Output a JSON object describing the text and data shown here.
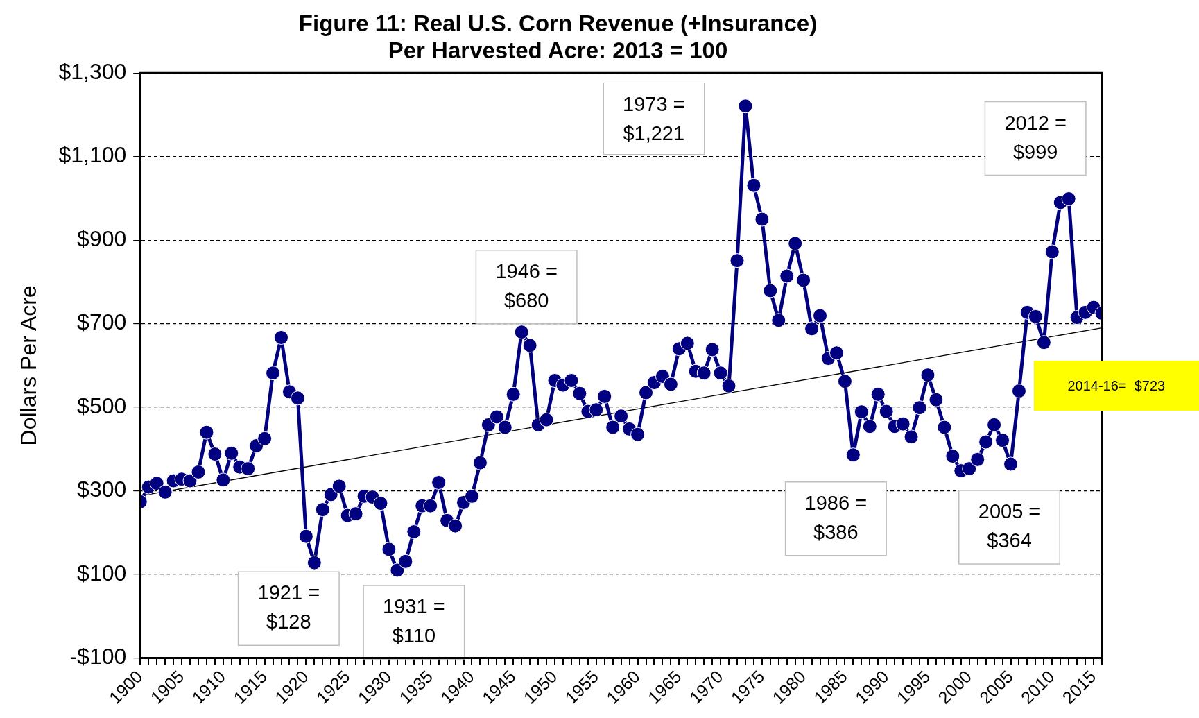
{
  "chart_data": {
    "type": "line",
    "title": "Figure 11: Real U.S. Corn Revenue (+Insurance)\nPer Harvested Acre: 2013 = 100",
    "ylabel": "Dollars Per Acre",
    "x": [
      1900,
      1901,
      1902,
      1903,
      1904,
      1905,
      1906,
      1907,
      1908,
      1909,
      1910,
      1911,
      1912,
      1913,
      1914,
      1915,
      1916,
      1917,
      1918,
      1919,
      1920,
      1921,
      1922,
      1923,
      1924,
      1925,
      1926,
      1927,
      1928,
      1929,
      1930,
      1931,
      1932,
      1933,
      1934,
      1935,
      1936,
      1937,
      1938,
      1939,
      1940,
      1941,
      1942,
      1943,
      1944,
      1945,
      1946,
      1947,
      1948,
      1949,
      1950,
      1951,
      1952,
      1953,
      1954,
      1955,
      1956,
      1957,
      1958,
      1959,
      1960,
      1961,
      1962,
      1963,
      1964,
      1965,
      1966,
      1967,
      1968,
      1969,
      1970,
      1971,
      1972,
      1973,
      1974,
      1975,
      1976,
      1977,
      1978,
      1979,
      1980,
      1981,
      1982,
      1983,
      1984,
      1985,
      1986,
      1987,
      1988,
      1989,
      1990,
      1991,
      1992,
      1993,
      1994,
      1995,
      1996,
      1997,
      1998,
      1999,
      2000,
      2001,
      2002,
      2003,
      2004,
      2005,
      2006,
      2007,
      2008,
      2009,
      2010,
      2011,
      2012,
      2013,
      2014,
      2015,
      2016
    ],
    "series": [
      {
        "color": "#000080",
        "marker": "circle",
        "values": [
          274,
          309,
          318,
          297,
          324,
          328,
          324,
          345,
          440,
          388,
          326,
          390,
          357,
          353,
          408,
          425,
          582,
          667,
          537,
          522,
          191,
          128,
          255,
          291,
          311,
          241,
          245,
          287,
          285,
          270,
          160,
          110,
          131,
          202,
          264,
          264,
          320,
          229,
          216,
          272,
          287,
          367,
          458,
          477,
          452,
          531,
          680,
          648,
          458,
          470,
          564,
          553,
          564,
          533,
          490,
          494,
          526,
          452,
          479,
          448,
          435,
          535,
          559,
          574,
          555,
          640,
          653,
          586,
          582,
          638,
          582,
          551,
          851,
          1221,
          1031,
          950,
          779,
          708,
          814,
          892,
          804,
          688,
          719,
          617,
          630,
          562,
          386,
          489,
          454,
          531,
          490,
          454,
          460,
          429,
          499,
          577,
          518,
          452,
          383,
          348,
          353,
          375,
          417,
          458,
          421,
          364,
          539,
          727,
          717,
          655,
          872,
          990,
          999,
          715,
          727,
          739,
          725
        ]
      },
      {
        "type": "line",
        "color": "#000000",
        "marker": "none",
        "x": [
          1900,
          2016
        ],
        "values": [
          288,
          690
        ]
      }
    ],
    "xlim": [
      1900,
      2016
    ],
    "xticks": [
      1900,
      {
        "value": 1901,
        "label": null
      },
      {
        "value": 1902,
        "label": null
      },
      {
        "value": 1903,
        "label": null
      },
      {
        "value": 1904,
        "label": null
      },
      1905,
      {
        "value": 1906,
        "label": null
      },
      {
        "value": 1907,
        "label": null
      },
      {
        "value": 1908,
        "label": null
      },
      {
        "value": 1909,
        "label": null
      },
      1910,
      {
        "value": 1911,
        "label": null
      },
      {
        "value": 1912,
        "label": null
      },
      {
        "value": 1913,
        "label": null
      },
      {
        "value": 1914,
        "label": null
      },
      1915,
      {
        "value": 1916,
        "label": null
      },
      {
        "value": 1917,
        "label": null
      },
      {
        "value": 1918,
        "label": null
      },
      {
        "value": 1919,
        "label": null
      },
      1920,
      {
        "value": 1921,
        "label": null
      },
      {
        "value": 1922,
        "label": null
      },
      {
        "value": 1923,
        "label": null
      },
      {
        "value": 1924,
        "label": null
      },
      1925,
      {
        "value": 1926,
        "label": null
      },
      {
        "value": 1927,
        "label": null
      },
      {
        "value": 1928,
        "label": null
      },
      {
        "value": 1929,
        "label": null
      },
      1930,
      {
        "value": 1931,
        "label": null
      },
      {
        "value": 1932,
        "label": null
      },
      {
        "value": 1933,
        "label": null
      },
      {
        "value": 1934,
        "label": null
      },
      1935,
      {
        "value": 1936,
        "label": null
      },
      {
        "value": 1937,
        "label": null
      },
      {
        "value": 1938,
        "label": null
      },
      {
        "value": 1939,
        "label": null
      },
      1940,
      {
        "value": 1941,
        "label": null
      },
      {
        "value": 1942,
        "label": null
      },
      {
        "value": 1943,
        "label": null
      },
      {
        "value": 1944,
        "label": null
      },
      1945,
      {
        "value": 1946,
        "label": null
      },
      {
        "value": 1947,
        "label": null
      },
      {
        "value": 1948,
        "label": null
      },
      {
        "value": 1949,
        "label": null
      },
      1950,
      {
        "value": 1951,
        "label": null
      },
      {
        "value": 1952,
        "label": null
      },
      {
        "value": 1953,
        "label": null
      },
      {
        "value": 1954,
        "label": null
      },
      1955,
      {
        "value": 1956,
        "label": null
      },
      {
        "value": 1957,
        "label": null
      },
      {
        "value": 1958,
        "label": null
      },
      {
        "value": 1959,
        "label": null
      },
      1960,
      {
        "value": 1961,
        "label": null
      },
      {
        "value": 1962,
        "label": null
      },
      {
        "value": 1963,
        "label": null
      },
      {
        "value": 1964,
        "label": null
      },
      1965,
      {
        "value": 1966,
        "label": null
      },
      {
        "value": 1967,
        "label": null
      },
      {
        "value": 1968,
        "label": null
      },
      {
        "value": 1969,
        "label": null
      },
      1970,
      {
        "value": 1971,
        "label": null
      },
      {
        "value": 1972,
        "label": null
      },
      {
        "value": 1973,
        "label": null
      },
      {
        "value": 1974,
        "label": null
      },
      1975,
      {
        "value": 1976,
        "label": null
      },
      {
        "value": 1977,
        "label": null
      },
      {
        "value": 1978,
        "label": null
      },
      {
        "value": 1979,
        "label": null
      },
      1980,
      {
        "value": 1981,
        "label": null
      },
      {
        "value": 1982,
        "label": null
      },
      {
        "value": 1983,
        "label": null
      },
      {
        "value": 1984,
        "label": null
      },
      1985,
      {
        "value": 1986,
        "label": null
      },
      {
        "value": 1987,
        "label": null
      },
      {
        "value": 1988,
        "label": null
      },
      {
        "value": 1989,
        "label": null
      },
      1990,
      {
        "value": 1991,
        "label": null
      },
      {
        "value": 1992,
        "label": null
      },
      {
        "value": 1993,
        "label": null
      },
      {
        "value": 1994,
        "label": null
      },
      1995,
      {
        "value": 1996,
        "label": null
      },
      {
        "value": 1997,
        "label": null
      },
      {
        "value": 1998,
        "label": null
      },
      {
        "value": 1999,
        "label": null
      },
      2000,
      {
        "value": 2001,
        "label": null
      },
      {
        "value": 2002,
        "label": null
      },
      {
        "value": 2003,
        "label": null
      },
      {
        "value": 2004,
        "label": null
      },
      2005,
      {
        "value": 2006,
        "label": null
      },
      {
        "value": 2007,
        "label": null
      },
      {
        "value": 2008,
        "label": null
      },
      {
        "value": 2009,
        "label": null
      },
      2010,
      {
        "value": 2011,
        "label": null
      },
      {
        "value": 2012,
        "label": null
      },
      {
        "value": 2013,
        "label": null
      },
      {
        "value": 2014,
        "label": null
      },
      2015,
      {
        "value": 2016,
        "label": null
      }
    ],
    "ylim": [
      -100,
      1300
    ],
    "yticks": [
      {
        "value": -100,
        "label": "-$100"
      },
      {
        "value": 100,
        "label": "$100"
      },
      {
        "value": 300,
        "label": "$300"
      },
      {
        "value": 500,
        "label": "$500"
      },
      {
        "value": 700,
        "label": "$700"
      },
      {
        "value": 900,
        "label": "$900"
      },
      {
        "value": 1100,
        "label": "$1,100"
      },
      {
        "value": 1300,
        "label": "$1,300"
      }
    ],
    "grid": "y",
    "legend": false,
    "annotations": [
      {
        "text": "1921 =\n$128",
        "x": 1921,
        "y": 128
      },
      {
        "text": "1931 =\n$110",
        "x": 1931,
        "y": 110
      },
      {
        "text": "1946 =\n$680",
        "x": 1946,
        "y": 680
      },
      "1973 =\n$1,221",
      {
        "text": "1986 =\n$386",
        "x": 1986,
        "y": 386
      },
      {
        "text": "2005 =\n$364",
        "x": 2005,
        "y": 364
      },
      {
        "text": "2012 =\n$999",
        "x": 2012,
        "y": 999
      },
      "2014-16=  $723"
    ]
  }
}
